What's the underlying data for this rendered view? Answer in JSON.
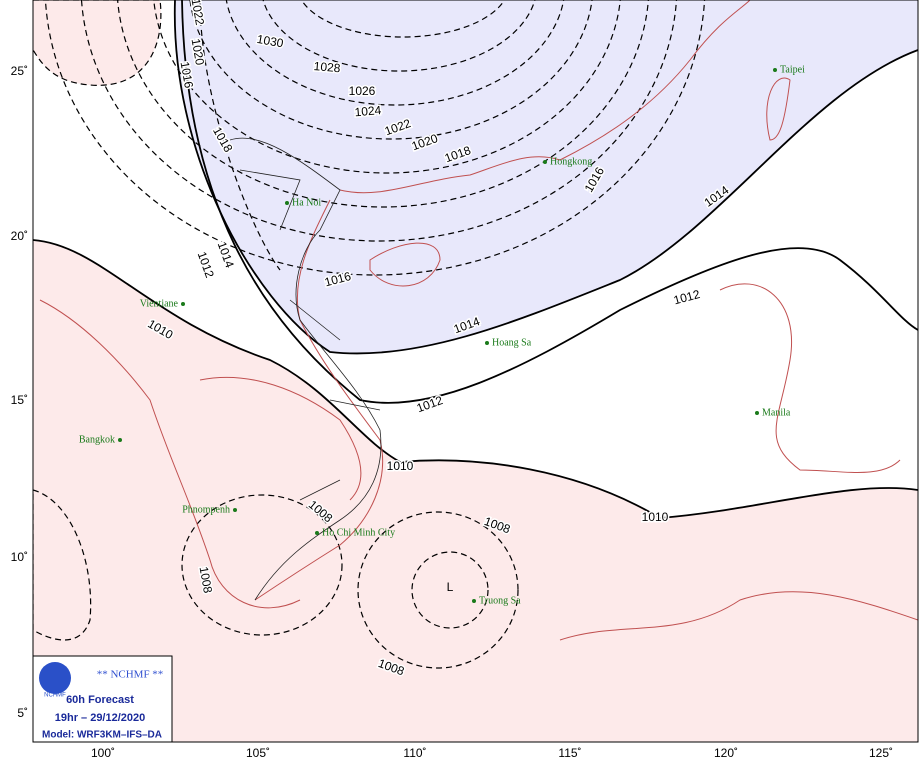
{
  "map": {
    "lon_labels": [
      "100˚",
      "105˚",
      "110˚",
      "115˚",
      "120˚",
      "125˚"
    ],
    "lat_labels": [
      "25˚",
      "20˚",
      "15˚",
      "10˚",
      "5˚"
    ],
    "isobar_labels": [
      1030,
      1028,
      1026,
      1024,
      1022,
      1020,
      1018,
      1016,
      1014,
      1016,
      1014,
      1012,
      1012,
      1010,
      1010,
      1008,
      1008,
      1008,
      1008,
      1018,
      1016,
      1020,
      1022,
      1012,
      1014,
      1010
    ],
    "low_label": "L",
    "places": [
      "Taipei",
      "Hongkong",
      "Ha Noi",
      "Vientiane",
      "Hoang Sa",
      "Bangkok",
      "Phnompenh",
      "Ho Chi Minh City",
      "Truong Sa",
      "Manila"
    ],
    "legend": {
      "agency": "** NCHMF **",
      "logo": "NCHMF",
      "forecast": "60h Forecast",
      "time": "19hr – 29/12/2020",
      "model": "Model: WRF3KM–IFS–DA"
    }
  }
}
